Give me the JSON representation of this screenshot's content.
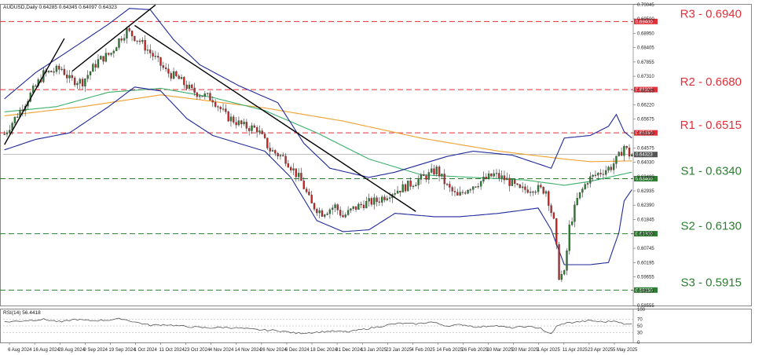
{
  "header": {
    "title": "AUDUSD,Daily  0.64285 0.64345 0.64097 0.64323"
  },
  "rsi_panel": {
    "title": "RSI(14) 56.4418"
  },
  "colors": {
    "resistance": "#e0303a",
    "support": "#2e7d32",
    "bollinger": "#1f2a9a",
    "ma_fast": "#3cae6a",
    "ma_slow": "#f0a030",
    "bull_candle": "#2e7d32",
    "bear_candle": "#c62828",
    "trendline": "#000000",
    "rsi_line": "#555555"
  },
  "chart_data": {
    "type": "candlestick",
    "price_axis": {
      "ylim": [
        0.5856,
        0.7004
      ],
      "ticks": [
        "0.70045",
        "0.69500",
        "0.68950",
        "0.68405",
        "0.67855",
        "0.67310",
        "0.66765",
        "0.66220",
        "0.65675",
        "0.65130",
        "0.64575",
        "0.64030",
        "0.63480",
        "0.62935",
        "0.62390",
        "0.61845",
        "0.61300",
        "0.60745",
        "0.60195",
        "0.59655",
        "0.59110",
        "0.58555"
      ]
    },
    "rsi_axis": {
      "ylim": [
        0,
        100
      ],
      "ticks": [
        "100",
        "70",
        "50",
        "30",
        "0"
      ]
    },
    "x_ticks": [
      "6 Aug 2024",
      "16 Aug 2024",
      "28 Aug 2024",
      "9 Sep 2024",
      "19 Sep 2024",
      "1 Oct 2024",
      "11 Oct 2024",
      "23 Oct 2024",
      "4 Nov 2024",
      "14 Nov 2024",
      "26 Nov 2024",
      "6 Dec 2024",
      "18 Dec 2024",
      "31 Dec 2024",
      "13 Jan 2025",
      "23 Jan 2025",
      "4 Feb 2025",
      "14 Feb 2025",
      "26 Feb 2025",
      "10 Mar 2025",
      "20 Mar 2025",
      "1 Apr 2025",
      "11 Apr 2025",
      "23 Apr 2025",
      "5 May 2025"
    ],
    "current_price": {
      "label": "0.64323",
      "value": 0.64323
    },
    "levels": [
      {
        "name": "R3 - 0.6940",
        "tag": "0.69400",
        "value": 0.694,
        "kind": "resistance"
      },
      {
        "name": "R2 - 0.6680",
        "tag": "0.66800",
        "value": 0.668,
        "kind": "resistance"
      },
      {
        "name": "R1 - 0.6515",
        "tag": "0.65150",
        "value": 0.6515,
        "kind": "resistance"
      },
      {
        "name": "S1 - 0.6340",
        "tag": "0.63400",
        "value": 0.634,
        "kind": "support"
      },
      {
        "name": "S2 - 0.6130",
        "tag": "0.61300",
        "value": 0.613,
        "kind": "support"
      },
      {
        "name": "S3 - 0.5915",
        "tag": "0.59150",
        "value": 0.5915,
        "kind": "support"
      }
    ],
    "close_path": [
      [
        0,
        0.651
      ],
      [
        8,
        0.663
      ],
      [
        15,
        0.674
      ],
      [
        22,
        0.676
      ],
      [
        25,
        0.6718
      ],
      [
        30,
        0.671
      ],
      [
        36,
        0.679
      ],
      [
        41,
        0.682
      ],
      [
        44,
        0.687
      ],
      [
        47,
        0.6905
      ],
      [
        52,
        0.6865
      ],
      [
        57,
        0.681
      ],
      [
        62,
        0.675
      ],
      [
        67,
        0.672
      ],
      [
        72,
        0.6675
      ],
      [
        80,
        0.6645
      ],
      [
        85,
        0.658
      ],
      [
        92,
        0.654
      ],
      [
        97,
        0.653
      ],
      [
        102,
        0.645
      ],
      [
        108,
        0.6415
      ],
      [
        114,
        0.633
      ],
      [
        118,
        0.624
      ],
      [
        122,
        0.621
      ],
      [
        127,
        0.6235
      ],
      [
        130,
        0.6195
      ],
      [
        134,
        0.6225
      ],
      [
        138,
        0.6245
      ],
      [
        143,
        0.6255
      ],
      [
        148,
        0.6285
      ],
      [
        153,
        0.6305
      ],
      [
        158,
        0.633
      ],
      [
        163,
        0.6355
      ],
      [
        166,
        0.6375
      ],
      [
        170,
        0.631
      ],
      [
        174,
        0.627
      ],
      [
        178,
        0.6305
      ],
      [
        183,
        0.633
      ],
      [
        188,
        0.6355
      ],
      [
        193,
        0.6335
      ],
      [
        198,
        0.6295
      ],
      [
        203,
        0.6305
      ],
      [
        208,
        0.6295
      ],
      [
        211,
        0.6175
      ],
      [
        213,
        0.597
      ],
      [
        215,
        0.5975
      ],
      [
        217,
        0.6155
      ],
      [
        220,
        0.626
      ],
      [
        224,
        0.6335
      ],
      [
        229,
        0.6365
      ],
      [
        233,
        0.6385
      ],
      [
        236,
        0.6425
      ],
      [
        238,
        0.6465
      ],
      [
        240,
        0.6433
      ],
      [
        241,
        0.6432
      ]
    ],
    "ma_fast": [
      [
        0,
        0.6595
      ],
      [
        20,
        0.6615
      ],
      [
        40,
        0.667
      ],
      [
        60,
        0.6685
      ],
      [
        80,
        0.665
      ],
      [
        100,
        0.66
      ],
      [
        120,
        0.6515
      ],
      [
        140,
        0.6415
      ],
      [
        160,
        0.6355
      ],
      [
        180,
        0.6345
      ],
      [
        200,
        0.6335
      ],
      [
        215,
        0.6315
      ],
      [
        225,
        0.633
      ],
      [
        241,
        0.6365
      ]
    ],
    "ma_slow": [
      [
        0,
        0.658
      ],
      [
        30,
        0.6615
      ],
      [
        60,
        0.666
      ],
      [
        80,
        0.6635
      ],
      [
        100,
        0.661
      ],
      [
        130,
        0.656
      ],
      [
        160,
        0.6495
      ],
      [
        190,
        0.6445
      ],
      [
        215,
        0.6415
      ],
      [
        225,
        0.6405
      ],
      [
        241,
        0.6408
      ]
    ],
    "bollinger_upper": [
      [
        0,
        0.6645
      ],
      [
        12,
        0.6745
      ],
      [
        25,
        0.683
      ],
      [
        40,
        0.693
      ],
      [
        48,
        0.699
      ],
      [
        56,
        0.6985
      ],
      [
        65,
        0.687
      ],
      [
        75,
        0.6775
      ],
      [
        90,
        0.6695
      ],
      [
        105,
        0.663
      ],
      [
        115,
        0.6475
      ],
      [
        125,
        0.638
      ],
      [
        140,
        0.6345
      ],
      [
        150,
        0.6365
      ],
      [
        160,
        0.6395
      ],
      [
        170,
        0.6425
      ],
      [
        180,
        0.6445
      ],
      [
        195,
        0.643
      ],
      [
        210,
        0.638
      ],
      [
        215,
        0.6495
      ],
      [
        225,
        0.6505
      ],
      [
        232,
        0.654
      ],
      [
        235,
        0.6585
      ],
      [
        238,
        0.652
      ],
      [
        241,
        0.6495
      ]
    ],
    "bollinger_lower": [
      [
        0,
        0.645
      ],
      [
        12,
        0.649
      ],
      [
        25,
        0.6515
      ],
      [
        40,
        0.6615
      ],
      [
        50,
        0.669
      ],
      [
        60,
        0.6675
      ],
      [
        70,
        0.657
      ],
      [
        80,
        0.6505
      ],
      [
        100,
        0.6445
      ],
      [
        110,
        0.6345
      ],
      [
        120,
        0.618
      ],
      [
        130,
        0.6138
      ],
      [
        140,
        0.6145
      ],
      [
        150,
        0.6208
      ],
      [
        165,
        0.6195
      ],
      [
        175,
        0.6195
      ],
      [
        190,
        0.6208
      ],
      [
        205,
        0.6228
      ],
      [
        210,
        0.6145
      ],
      [
        215,
        0.6012
      ],
      [
        225,
        0.6012
      ],
      [
        232,
        0.602
      ],
      [
        236,
        0.6135
      ],
      [
        238,
        0.6255
      ],
      [
        241,
        0.6298
      ]
    ],
    "trendlines": [
      {
        "from": [
          0,
          0.647
        ],
        "to": [
          23,
          0.6875
        ]
      },
      {
        "from": [
          26,
          0.675
        ],
        "to": [
          58,
          0.7003
        ]
      },
      {
        "from": [
          50,
          0.6925
        ],
        "to": [
          158,
          0.6215
        ]
      }
    ],
    "rsi_values": [
      [
        0,
        62
      ],
      [
        8,
        66
      ],
      [
        15,
        70
      ],
      [
        22,
        62
      ],
      [
        27,
        70
      ],
      [
        33,
        66
      ],
      [
        40,
        68
      ],
      [
        45,
        72
      ],
      [
        50,
        62
      ],
      [
        56,
        52
      ],
      [
        62,
        54
      ],
      [
        70,
        48
      ],
      [
        78,
        44
      ],
      [
        85,
        46
      ],
      [
        92,
        42
      ],
      [
        98,
        38
      ],
      [
        105,
        36
      ],
      [
        112,
        28
      ],
      [
        118,
        30
      ],
      [
        125,
        34
      ],
      [
        132,
        32
      ],
      [
        138,
        40
      ],
      [
        144,
        48
      ],
      [
        148,
        54
      ],
      [
        152,
        58
      ],
      [
        158,
        56
      ],
      [
        164,
        62
      ],
      [
        170,
        50
      ],
      [
        176,
        54
      ],
      [
        182,
        46
      ],
      [
        188,
        52
      ],
      [
        194,
        44
      ],
      [
        200,
        48
      ],
      [
        206,
        44
      ],
      [
        208,
        30
      ],
      [
        210,
        26
      ],
      [
        212,
        48
      ],
      [
        215,
        58
      ],
      [
        220,
        62
      ],
      [
        225,
        66
      ],
      [
        230,
        62
      ],
      [
        235,
        66
      ],
      [
        238,
        54
      ],
      [
        241,
        56.4418
      ]
    ]
  }
}
